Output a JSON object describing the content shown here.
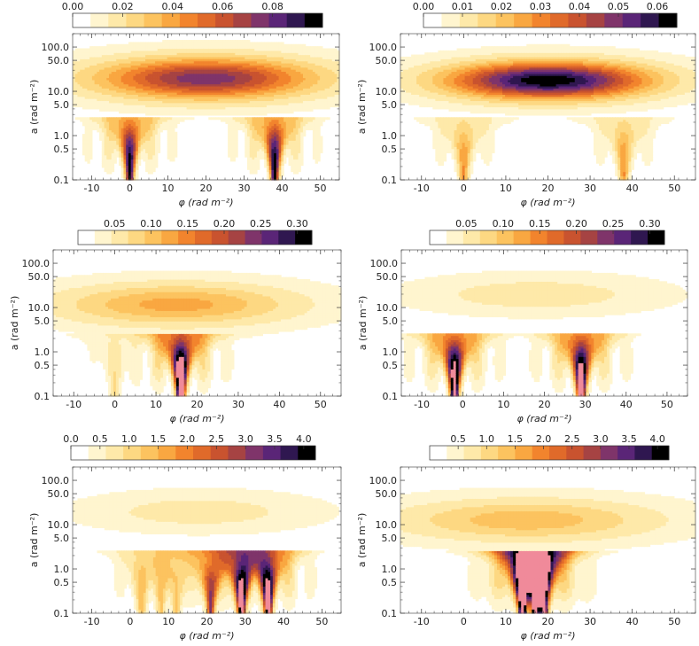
{
  "palette": [
    "#ffffff",
    "#fff5cf",
    "#fee9a9",
    "#fdd882",
    "#fcc35f",
    "#f9a741",
    "#f2842d",
    "#e06a2a",
    "#c9532f",
    "#a64343",
    "#7f346a",
    "#5a2577",
    "#2f1750",
    "#000000"
  ],
  "chart_data": [
    {
      "type": "heatmap",
      "title": "",
      "xlabel": "φ (rad m⁻²)",
      "ylabel": "a (rad m⁻²)",
      "xlim": [
        -15,
        55
      ],
      "ylim": [
        0.1,
        200
      ],
      "x_ticks": [
        "-10",
        "0",
        "10",
        "20",
        "30",
        "40",
        "50"
      ],
      "y_ticks": [
        "0.1",
        "0.5",
        "1.0",
        "5.0",
        "10.0",
        "50.0",
        "100.0"
      ],
      "colorbar": {
        "ticks": [
          "0.00",
          "0.02",
          "0.04",
          "0.06",
          "0.08"
        ],
        "min": 0,
        "max": 0.1
      },
      "features": [
        {
          "kind": "band",
          "center_phi": 20,
          "a_center": 20,
          "peak": 0.075,
          "width_phi": 30,
          "height_log": 0.45
        },
        {
          "kind": "source",
          "phi": 0,
          "peak": 0.1
        },
        {
          "kind": "source",
          "phi": 38,
          "peak": 0.1
        }
      ]
    },
    {
      "type": "heatmap",
      "title": "",
      "xlabel": "φ (rad m⁻²)",
      "ylabel": "a (rad m⁻²)",
      "xlim": [
        -15,
        55
      ],
      "ylim": [
        0.1,
        200
      ],
      "x_ticks": [
        "-10",
        "0",
        "10",
        "20",
        "30",
        "40",
        "50"
      ],
      "y_ticks": [
        "0.1",
        "0.5",
        "1.0",
        "5.0",
        "10.0",
        "50.0",
        "100.0"
      ],
      "colorbar": {
        "ticks": [
          "0.00",
          "0.01",
          "0.02",
          "0.03",
          "0.04",
          "0.05",
          "0.06"
        ],
        "min": 0,
        "max": 0.065
      },
      "features": [
        {
          "kind": "band",
          "center_phi": 20,
          "a_center": 18,
          "peak": 0.065,
          "width_phi": 25,
          "height_log": 0.4
        },
        {
          "kind": "source",
          "phi": 0,
          "peak": 0.025
        },
        {
          "kind": "source",
          "phi": 38,
          "peak": 0.025
        }
      ]
    },
    {
      "type": "heatmap",
      "title": "",
      "xlabel": "φ (rad m⁻²)",
      "ylabel": "a (rad m⁻²)",
      "xlim": [
        -15,
        55
      ],
      "ylim": [
        0.1,
        200
      ],
      "x_ticks": [
        "-10",
        "0",
        "10",
        "20",
        "30",
        "40",
        "50"
      ],
      "y_ticks": [
        "0.1",
        "0.5",
        "1.0",
        "5.0",
        "10.0",
        "50.0",
        "100.0"
      ],
      "colorbar": {
        "ticks": [
          "0.05",
          "0.10",
          "0.15",
          "0.20",
          "0.25",
          "0.30"
        ],
        "min": 0,
        "max": 0.32
      },
      "features": [
        {
          "kind": "band",
          "center_phi": 15,
          "a_center": 12,
          "peak": 0.11,
          "width_phi": 30,
          "height_log": 0.45
        },
        {
          "kind": "source",
          "phi": 16,
          "peak": 0.45
        },
        {
          "kind": "source",
          "phi": 0,
          "peak": 0.05
        }
      ]
    },
    {
      "type": "heatmap",
      "title": "",
      "xlabel": "φ (rad m⁻²)",
      "ylabel": "a (rad m⁻²)",
      "xlim": [
        -15,
        55
      ],
      "ylim": [
        0.1,
        200
      ],
      "x_ticks": [
        "-10",
        "0",
        "10",
        "20",
        "30",
        "40",
        "50"
      ],
      "y_ticks": [
        "0.1",
        "0.5",
        "1.0",
        "5.0",
        "10.0",
        "50.0",
        "100.0"
      ],
      "colorbar": {
        "ticks": [
          "0.05",
          "0.10",
          "0.15",
          "0.20",
          "0.25",
          "0.30"
        ],
        "min": 0,
        "max": 0.32
      },
      "features": [
        {
          "kind": "band",
          "center_phi": 18,
          "a_center": 20,
          "peak": 0.04,
          "width_phi": 30,
          "height_log": 0.4
        },
        {
          "kind": "source",
          "phi": -2,
          "peak": 0.4
        },
        {
          "kind": "source",
          "phi": 29,
          "peak": 0.4
        }
      ]
    },
    {
      "type": "heatmap",
      "title": "",
      "xlabel": "φ (rad m⁻²)",
      "ylabel": "a (rad m⁻²)",
      "xlim": [
        -15,
        55
      ],
      "ylim": [
        0.1,
        200
      ],
      "x_ticks": [
        "-10",
        "0",
        "10",
        "20",
        "30",
        "40",
        "50"
      ],
      "y_ticks": [
        "0.1",
        "0.5",
        "1.0",
        "5.0",
        "10.0",
        "50.0",
        "100.0"
      ],
      "colorbar": {
        "ticks": [
          "0.0",
          "0.5",
          "1.0",
          "1.5",
          "2.0",
          "2.5",
          "3.0",
          "3.5",
          "4.0"
        ],
        "min": 0,
        "max": 4.2
      },
      "features": [
        {
          "kind": "band",
          "center_phi": 18,
          "a_center": 20,
          "peak": 0.5,
          "width_phi": 30,
          "height_log": 0.4
        },
        {
          "kind": "source",
          "phi": 3,
          "peak": 1.2
        },
        {
          "kind": "source",
          "phi": 8,
          "peak": 1.0
        },
        {
          "kind": "source",
          "phi": 12,
          "peak": 1.0
        },
        {
          "kind": "source",
          "phi": 21,
          "peak": 3.0
        },
        {
          "kind": "source",
          "phi": 29,
          "peak": 5.0
        },
        {
          "kind": "source",
          "phi": 36,
          "peak": 5.0
        }
      ]
    },
    {
      "type": "heatmap",
      "title": "",
      "xlabel": "φ (rad m⁻²)",
      "ylabel": "a (rad m⁻²)",
      "xlim": [
        -15,
        55
      ],
      "ylim": [
        0.1,
        200
      ],
      "x_ticks": [
        "-10",
        "0",
        "10",
        "20",
        "30",
        "40",
        "50"
      ],
      "y_ticks": [
        "0.1",
        "0.5",
        "1.0",
        "5.0",
        "10.0",
        "50.0",
        "100.0"
      ],
      "colorbar": {
        "ticks": [
          "0.5",
          "1.0",
          "1.5",
          "2.0",
          "2.5",
          "3.0",
          "3.5",
          "4.0"
        ],
        "min": 0,
        "max": 4.2
      },
      "features": [
        {
          "kind": "band",
          "center_phi": 15,
          "a_center": 13,
          "peak": 1.2,
          "width_phi": 32,
          "height_log": 0.45
        },
        {
          "kind": "source",
          "phi": 14,
          "peak": 5.5
        },
        {
          "kind": "source",
          "phi": 17,
          "peak": 5.5
        },
        {
          "kind": "source",
          "phi": 19,
          "peak": 4.5
        }
      ]
    }
  ]
}
